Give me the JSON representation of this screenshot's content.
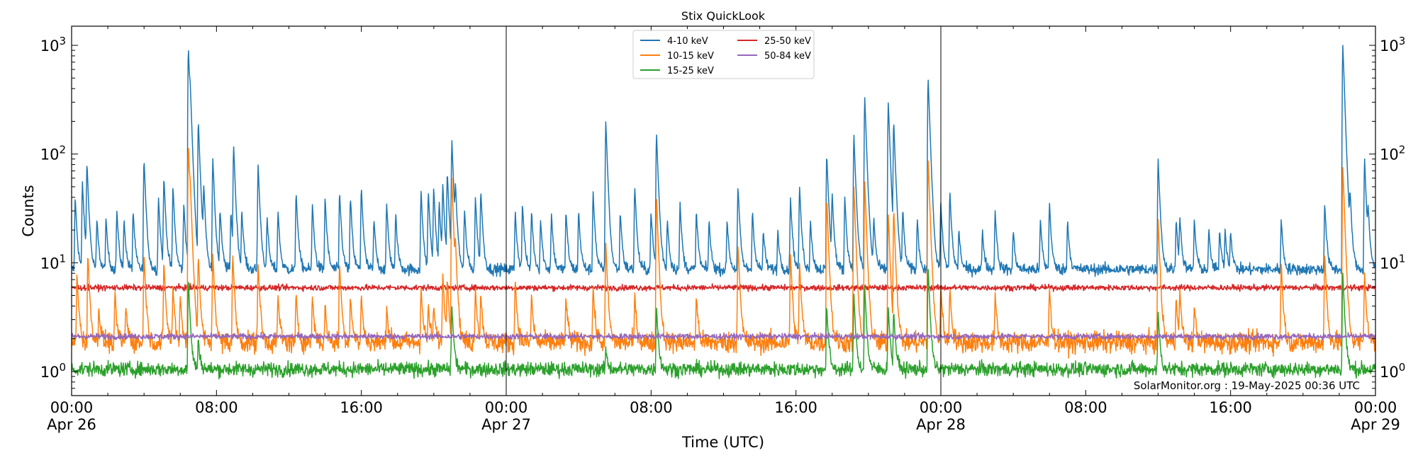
{
  "chart_data": {
    "type": "line",
    "title": "Stix QuickLook",
    "xlabel": "Time (UTC)",
    "ylabel": "Counts",
    "yscale": "log",
    "ylim": [
      0.6,
      1500
    ],
    "xlim_hours": [
      0,
      72
    ],
    "y_ticks": [
      {
        "value": 1,
        "base": "10",
        "exp": "0"
      },
      {
        "value": 10,
        "base": "10",
        "exp": "1"
      },
      {
        "value": 100,
        "base": "10",
        "exp": "2"
      },
      {
        "value": 1000,
        "base": "10",
        "exp": "3"
      }
    ],
    "x_ticks": [
      {
        "hour": 0,
        "time": "00:00",
        "date": "Apr 26"
      },
      {
        "hour": 8,
        "time": "08:00",
        "date": ""
      },
      {
        "hour": 16,
        "time": "16:00",
        "date": ""
      },
      {
        "hour": 24,
        "time": "00:00",
        "date": "Apr 27"
      },
      {
        "hour": 32,
        "time": "08:00",
        "date": ""
      },
      {
        "hour": 40,
        "time": "16:00",
        "date": ""
      },
      {
        "hour": 48,
        "time": "00:00",
        "date": "Apr 28"
      },
      {
        "hour": 56,
        "time": "08:00",
        "date": ""
      },
      {
        "hour": 64,
        "time": "16:00",
        "date": ""
      },
      {
        "hour": 72,
        "time": "00:00",
        "date": "Apr 29"
      }
    ],
    "day_separators_hours": [
      24,
      48
    ],
    "credit": "SolarMonitor.org : 19-May-2025 00:36 UTC",
    "legend_position": "top-center",
    "series": [
      {
        "name": "4-10 keV",
        "color": "#1f77b4",
        "baseline": 8.7,
        "noise": 0.06,
        "peaks": [
          [
            0.2,
            40
          ],
          [
            0.6,
            55
          ],
          [
            0.85,
            80
          ],
          [
            1.4,
            25
          ],
          [
            1.9,
            25
          ],
          [
            2.5,
            30
          ],
          [
            2.9,
            25
          ],
          [
            3.4,
            30
          ],
          [
            4.0,
            90
          ],
          [
            4.8,
            40
          ],
          [
            5.1,
            60
          ],
          [
            5.6,
            50
          ],
          [
            6.2,
            35
          ],
          [
            6.45,
            950
          ],
          [
            6.55,
            150
          ],
          [
            7.0,
            200
          ],
          [
            7.3,
            45
          ],
          [
            7.8,
            90
          ],
          [
            8.2,
            30
          ],
          [
            8.8,
            30
          ],
          [
            8.95,
            115
          ],
          [
            9.4,
            30
          ],
          [
            10.3,
            80
          ],
          [
            10.8,
            25
          ],
          [
            11.4,
            30
          ],
          [
            12.4,
            45
          ],
          [
            13.3,
            35
          ],
          [
            14.0,
            40
          ],
          [
            14.8,
            45
          ],
          [
            15.4,
            40
          ],
          [
            16.0,
            50
          ],
          [
            16.7,
            25
          ],
          [
            17.4,
            35
          ],
          [
            17.9,
            28
          ],
          [
            19.3,
            45
          ],
          [
            19.7,
            45
          ],
          [
            20.0,
            48
          ],
          [
            20.3,
            35
          ],
          [
            20.5,
            50
          ],
          [
            20.75,
            65
          ],
          [
            21.0,
            130
          ],
          [
            21.2,
            40
          ],
          [
            21.7,
            30
          ],
          [
            22.3,
            40
          ],
          [
            22.6,
            45
          ],
          [
            24.5,
            30
          ],
          [
            24.9,
            35
          ],
          [
            25.4,
            30
          ],
          [
            25.9,
            25
          ],
          [
            26.5,
            28
          ],
          [
            27.3,
            30
          ],
          [
            28.0,
            30
          ],
          [
            28.8,
            45
          ],
          [
            29.5,
            200
          ],
          [
            30.3,
            30
          ],
          [
            31.1,
            50
          ],
          [
            32.0,
            30
          ],
          [
            32.3,
            155
          ],
          [
            32.9,
            25
          ],
          [
            33.6,
            35
          ],
          [
            34.5,
            30
          ],
          [
            35.2,
            25
          ],
          [
            36.2,
            25
          ],
          [
            36.8,
            50
          ],
          [
            37.6,
            30
          ],
          [
            38.2,
            20
          ],
          [
            39.0,
            20
          ],
          [
            39.7,
            40
          ],
          [
            40.2,
            50
          ],
          [
            40.8,
            25
          ],
          [
            41.7,
            100
          ],
          [
            42.0,
            40
          ],
          [
            42.7,
            40
          ],
          [
            43.2,
            150
          ],
          [
            43.8,
            330
          ],
          [
            44.3,
            25
          ],
          [
            45.1,
            300
          ],
          [
            45.4,
            190
          ],
          [
            45.9,
            30
          ],
          [
            46.7,
            25
          ],
          [
            47.3,
            500
          ],
          [
            48.0,
            35
          ],
          [
            48.5,
            45
          ],
          [
            49.0,
            20
          ],
          [
            50.3,
            20
          ],
          [
            51.0,
            30
          ],
          [
            52.0,
            20
          ],
          [
            53.5,
            25
          ],
          [
            54.0,
            35
          ],
          [
            55.0,
            25
          ],
          [
            60.0,
            90
          ],
          [
            61.0,
            25
          ],
          [
            61.2,
            25
          ],
          [
            62.0,
            25
          ],
          [
            62.8,
            20
          ],
          [
            63.4,
            20
          ],
          [
            63.7,
            20
          ],
          [
            64.0,
            20
          ],
          [
            66.8,
            25
          ],
          [
            69.2,
            35
          ],
          [
            70.2,
            1000
          ],
          [
            70.6,
            35
          ],
          [
            71.4,
            90
          ],
          [
            71.6,
            25
          ]
        ]
      },
      {
        "name": "10-15 keV",
        "color": "#ff7f0e",
        "baseline": 1.85,
        "noise": 0.11,
        "peaks": [
          [
            0.3,
            8
          ],
          [
            0.9,
            12
          ],
          [
            1.5,
            4
          ],
          [
            2.4,
            5
          ],
          [
            3.0,
            4
          ],
          [
            4.0,
            12
          ],
          [
            5.1,
            10
          ],
          [
            5.6,
            6
          ],
          [
            6.0,
            5
          ],
          [
            6.45,
            120
          ],
          [
            6.55,
            20
          ],
          [
            7.0,
            11
          ],
          [
            7.8,
            12
          ],
          [
            8.9,
            12
          ],
          [
            10.3,
            10
          ],
          [
            11.4,
            5
          ],
          [
            12.4,
            5
          ],
          [
            13.3,
            5
          ],
          [
            14.0,
            4
          ],
          [
            14.8,
            10
          ],
          [
            15.4,
            5
          ],
          [
            16.0,
            5
          ],
          [
            17.4,
            4
          ],
          [
            19.3,
            6
          ],
          [
            19.7,
            4
          ],
          [
            20.0,
            4
          ],
          [
            20.5,
            8
          ],
          [
            20.75,
            7
          ],
          [
            21.0,
            60
          ],
          [
            21.2,
            10
          ],
          [
            22.3,
            6
          ],
          [
            22.6,
            5
          ],
          [
            24.5,
            7
          ],
          [
            25.4,
            5
          ],
          [
            27.3,
            5
          ],
          [
            28.8,
            6
          ],
          [
            29.5,
            15
          ],
          [
            31.1,
            5
          ],
          [
            32.3,
            40
          ],
          [
            34.5,
            5
          ],
          [
            36.8,
            15
          ],
          [
            39.7,
            12
          ],
          [
            40.2,
            10
          ],
          [
            41.7,
            40
          ],
          [
            43.2,
            50
          ],
          [
            43.8,
            55
          ],
          [
            45.1,
            28
          ],
          [
            45.4,
            30
          ],
          [
            47.3,
            90
          ],
          [
            48.0,
            6
          ],
          [
            48.5,
            6
          ],
          [
            51.0,
            5
          ],
          [
            54.0,
            6
          ],
          [
            60.0,
            25
          ],
          [
            61.0,
            5
          ],
          [
            61.2,
            5
          ],
          [
            62.0,
            4
          ],
          [
            66.8,
            10
          ],
          [
            69.2,
            12
          ],
          [
            70.2,
            75
          ],
          [
            71.4,
            8
          ]
        ]
      },
      {
        "name": "15-25 keV",
        "color": "#2ca02c",
        "baseline": 1.05,
        "noise": 0.075,
        "peaks": [
          [
            6.45,
            7
          ],
          [
            7.0,
            2
          ],
          [
            21.0,
            4
          ],
          [
            29.5,
            1.6
          ],
          [
            32.3,
            4
          ],
          [
            41.7,
            4
          ],
          [
            43.2,
            5
          ],
          [
            43.8,
            6
          ],
          [
            45.1,
            4
          ],
          [
            45.4,
            3.5
          ],
          [
            47.3,
            9
          ],
          [
            60.0,
            3.5
          ],
          [
            70.2,
            8
          ]
        ]
      },
      {
        "name": "25-50 keV",
        "color": "#d62728",
        "baseline": 5.9,
        "noise": 0.03,
        "peaks": []
      },
      {
        "name": "50-84 keV",
        "color": "#9467bd",
        "baseline": 2.1,
        "noise": 0.03,
        "peaks": []
      }
    ]
  }
}
